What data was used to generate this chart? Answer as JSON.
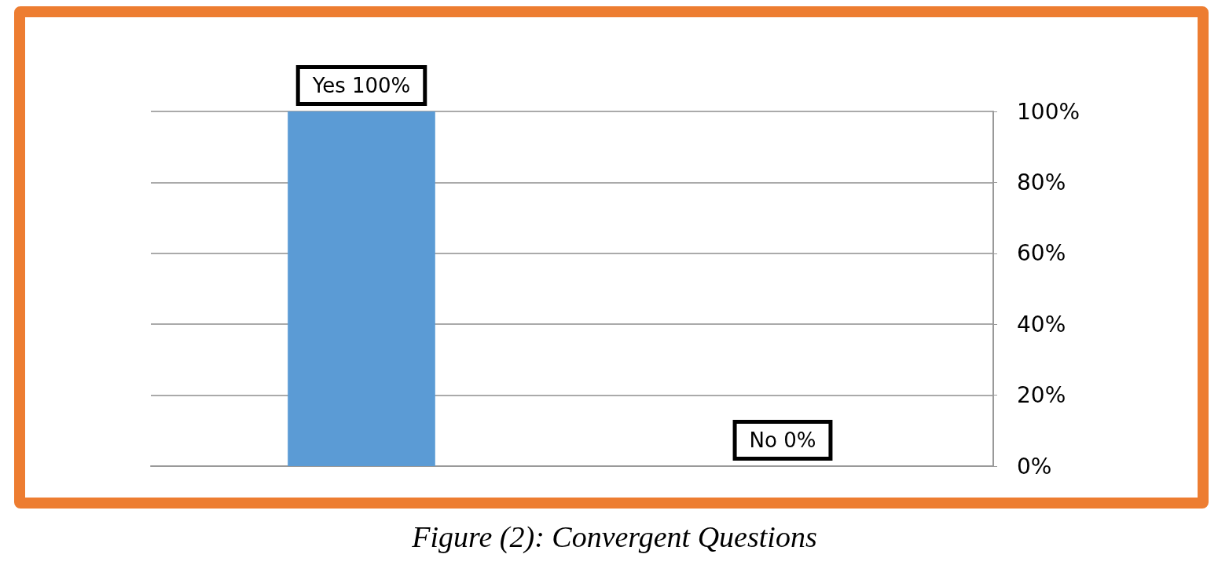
{
  "chart_data": {
    "type": "bar",
    "title": "Figure (2): Convergent Questions",
    "categories": [
      null,
      null
    ],
    "values": [
      100,
      0
    ],
    "value_labels": [
      "Yes 100%",
      "No 0%"
    ],
    "color": "#5b9bd5",
    "ylim": [
      0,
      100
    ],
    "yticks": [
      {
        "value": 0,
        "label": "0%"
      },
      {
        "value": 20,
        "label": "20%"
      },
      {
        "value": 40,
        "label": "40%"
      },
      {
        "value": 60,
        "label": "60%"
      },
      {
        "value": 80,
        "label": "80%"
      },
      {
        "value": 100,
        "label": "100%"
      }
    ],
    "grid": true
  }
}
